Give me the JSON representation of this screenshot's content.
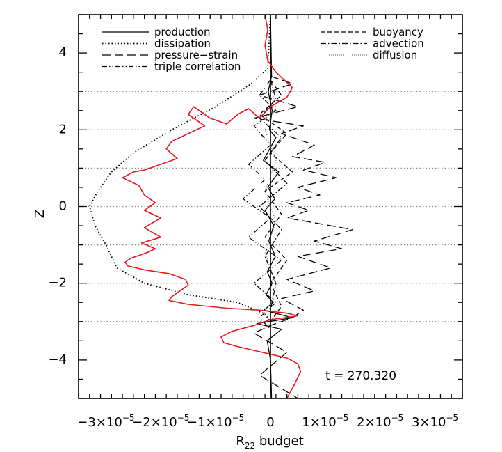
{
  "chart_data": {
    "type": "line",
    "title": "",
    "xlabel": "R",
    "xlabel_sub": "22",
    "xlabel_suffix": " budget",
    "ylabel": "Z",
    "xlim": [
      -3.5e-05,
      3.5e-05
    ],
    "ylim": [
      -5,
      5
    ],
    "x_tick_values": [
      -3e-05,
      -2e-05,
      -1e-05,
      0,
      1e-05,
      2e-05,
      3e-05
    ],
    "x_tick_labels": [
      {
        "mant": "−3×10",
        "exp": "−5"
      },
      {
        "mant": "−2×10",
        "exp": "−5"
      },
      {
        "mant": "−1×10",
        "exp": "−5"
      },
      {
        "mant": "0",
        "exp": ""
      },
      {
        "mant": "1×10",
        "exp": "−5"
      },
      {
        "mant": "2×10",
        "exp": "−5"
      },
      {
        "mant": "3×10",
        "exp": "−5"
      }
    ],
    "y_tick_values": [
      -4,
      -2,
      0,
      2,
      4
    ],
    "y_tick_labels": [
      "−4",
      "−2",
      "0",
      "2",
      "4"
    ],
    "hgrid_values": [
      -3,
      -2,
      -1,
      0,
      1,
      2,
      3
    ],
    "annotation": "t = 270.320",
    "legend_left": [
      "production",
      "dissipation",
      "pressure−strain",
      "triple correlation"
    ],
    "legend_right": [
      "buoyancy",
      "advection",
      "diffusion"
    ],
    "colors": {
      "total": "#e8151c",
      "black": "#000000",
      "grid": "#888888"
    },
    "series": [
      {
        "name": "production",
        "style": "solid",
        "x": [
          0,
          2e-07,
          -4e-07,
          3e-07,
          -2e-07,
          1e-06,
          -1.3e-06,
          1.5e-06,
          -5e-07,
          8e-07,
          -1e-06,
          6e-07,
          -3e-07,
          9e-07,
          -6e-07,
          3e-07,
          -8e-07,
          5e-07,
          -1.2e-06,
          4e-06,
          -2.5e-06,
          2e-06,
          -6e-07,
          0,
          2e-07
        ],
        "y": [
          5,
          3.4,
          3.0,
          2.5,
          2.0,
          1.8,
          1.2,
          0.9,
          0.5,
          0.2,
          -0.1,
          -0.5,
          -0.9,
          -1.3,
          -1.7,
          -2.0,
          -2.3,
          -2.5,
          -2.7,
          -2.9,
          -3.05,
          -3.2,
          -3.5,
          -4.0,
          -5.0
        ]
      },
      {
        "name": "dissipation",
        "style": "dotted",
        "x": [
          0,
          -5e-07,
          -3.5e-06,
          -1e-05,
          -1.8e-05,
          -2.5e-05,
          -2.9e-05,
          -3.15e-05,
          -3.3e-05,
          -3.2e-05,
          -3e-05,
          -2.8e-05,
          -2.3e-05,
          -1.5e-05,
          -6e-06,
          -1e-06,
          0
        ],
        "y": [
          5,
          3.6,
          3.2,
          2.6,
          2.0,
          1.4,
          0.9,
          0.4,
          0,
          -0.5,
          -1.0,
          -1.6,
          -2.0,
          -2.3,
          -2.5,
          -2.8,
          -3.0
        ]
      },
      {
        "name": "pressure−strain",
        "style": "longdash",
        "x": [
          0,
          4e-06,
          -2e-06,
          5e-06,
          -3e-06,
          6e-06,
          2e-06,
          8e-06,
          4e-06,
          1e-05,
          6e-06,
          1.2e-05,
          5e-06,
          9e-06,
          3e-06,
          7e-06,
          3e-06,
          1.5e-05,
          8e-06,
          1.3e-05,
          5e-06,
          1.1e-05,
          3e-06,
          8e-06,
          2e-06,
          6e-06,
          4e-06,
          0,
          -3e-06,
          3e-06,
          -2e-06,
          5e-06
        ],
        "y": [
          3.4,
          3.2,
          2.9,
          2.6,
          2.3,
          2.1,
          1.9,
          1.6,
          1.3,
          1.15,
          0.95,
          0.75,
          0.5,
          0.3,
          0.1,
          -0.1,
          -0.3,
          -0.6,
          -0.9,
          -1.1,
          -1.3,
          -1.6,
          -1.9,
          -2.2,
          -2.4,
          -2.7,
          -2.9,
          -3.1,
          -3.3,
          -3.8,
          -4.4,
          -5.0
        ]
      },
      {
        "name": "triple correlation",
        "style": "dashdotdot",
        "x": [
          0,
          -2e-06,
          1e-06,
          -3e-06,
          0,
          -4e-06,
          -1e-06,
          -5e-06,
          0,
          -4e-06,
          2e-06,
          -3e-06,
          1e-06,
          -2e-06,
          0
        ],
        "y": [
          3.3,
          2.9,
          2.5,
          2.1,
          1.6,
          1.1,
          0.7,
          0.2,
          -0.3,
          -0.8,
          -1.4,
          -2.0,
          -2.5,
          -2.9,
          -3.2
        ]
      },
      {
        "name": "buoyancy",
        "style": "shortdash",
        "x": [
          0,
          2e-06,
          -2e-06,
          3e-06,
          0,
          4e-06,
          -1e-06,
          2e-06,
          -1e-06,
          3e-06,
          0,
          2e-06,
          0
        ],
        "y": [
          3.3,
          2.9,
          2.4,
          1.9,
          1.4,
          0.9,
          0.4,
          -0.2,
          -0.8,
          -1.4,
          -2.0,
          -2.6,
          -3.0
        ]
      },
      {
        "name": "advection",
        "style": "dashdot",
        "x": [
          0,
          1e-06,
          -2e-06,
          2e-06,
          -1e-06,
          3e-06,
          -2e-06,
          2e-06,
          -1e-06,
          1e-06,
          0
        ],
        "y": [
          3.3,
          2.8,
          2.3,
          1.8,
          1.2,
          0.6,
          0,
          -0.6,
          -1.3,
          -2.0,
          -2.7
        ]
      },
      {
        "name": "diffusion",
        "style": "finedot",
        "x": [
          0,
          1e-06,
          -1e-06,
          1e-06,
          -1e-06,
          1e-06,
          -1e-06,
          1e-06,
          0
        ],
        "y": [
          3.2,
          2.6,
          2.0,
          1.2,
          0.4,
          -0.4,
          -1.2,
          -2.0,
          -2.6
        ]
      },
      {
        "name": "",
        "style": "solid-red",
        "x": [
          -1e-06,
          -5e-07,
          -1e-06,
          -5e-07,
          1e-06,
          4e-06,
          3e-06,
          0,
          -2e-06,
          -4e-06,
          -6e-06,
          -8e-06,
          -1.1e-05,
          -1.4e-05,
          -1.5e-05,
          -1.2e-05,
          -1.5e-05,
          -1.8e-05,
          -1.9e-05,
          -1.7e-05,
          -2.1e-05,
          -2.3e-05,
          -2.5e-05,
          -2.7e-05,
          -2.4e-05,
          -2.3e-05,
          -2.1e-05,
          -2.3e-05,
          -2e-05,
          -2.3e-05,
          -2e-05,
          -2.35e-05,
          -2.1e-05,
          -2.25e-05,
          -2.55e-05,
          -2.65e-05,
          -2.6e-05,
          -2.3e-05,
          -1.85e-05,
          -1.55e-05,
          -1.5e-05,
          -1.65e-05,
          -1.8e-05,
          -1.85e-05,
          -1.5e-05,
          -8e-06,
          -2e-06,
          3e-06,
          5e-06,
          0,
          -3e-06,
          -7e-06,
          -9e-06,
          -8.5e-06,
          -6e-06,
          -3e-06,
          0,
          3e-06,
          5e-06,
          5.5e-06,
          4.5e-06,
          3e-06
        ],
        "y": [
          5,
          4.6,
          4.2,
          3.8,
          3.5,
          3.1,
          2.85,
          2.6,
          2.3,
          2.55,
          2.4,
          2.15,
          2.3,
          2.6,
          2.4,
          2.1,
          1.9,
          1.7,
          1.5,
          1.25,
          1.05,
          0.95,
          0.9,
          0.75,
          0.55,
          0.3,
          0.1,
          -0.1,
          -0.3,
          -0.55,
          -0.8,
          -0.95,
          -1.1,
          -1.2,
          -1.35,
          -1.45,
          -1.55,
          -1.65,
          -1.75,
          -1.9,
          -2.05,
          -2.2,
          -2.35,
          -2.45,
          -2.55,
          -2.65,
          -2.7,
          -2.78,
          -2.85,
          -2.95,
          -3.1,
          -3.25,
          -3.4,
          -3.55,
          -3.65,
          -3.75,
          -3.85,
          -3.95,
          -4.1,
          -4.3,
          -4.6,
          -5.0
        ]
      }
    ]
  }
}
